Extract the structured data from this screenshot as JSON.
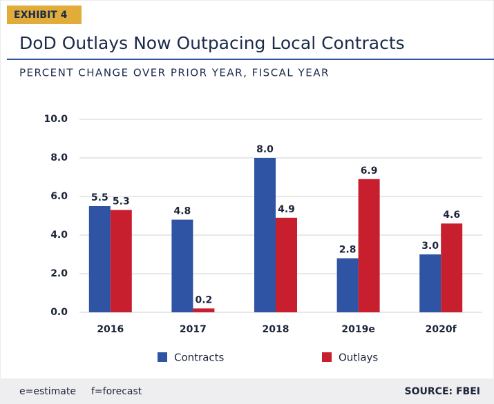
{
  "chart_data": {
    "type": "bar",
    "exhibit": "EXHIBIT 4",
    "title": "DoD Outlays Now Outpacing Local Contracts",
    "subtitle": "PERCENT CHANGE OVER PRIOR YEAR, FISCAL YEAR",
    "categories": [
      "2016",
      "2017",
      "2018",
      "2019e",
      "2020f"
    ],
    "series": [
      {
        "name": "Contracts",
        "color": "#2e54a3",
        "values": [
          5.5,
          4.8,
          8.0,
          2.8,
          3.0
        ],
        "value_labels": [
          "5.5",
          "4.8",
          "8.0",
          "2.8",
          "3.0"
        ]
      },
      {
        "name": "Outlays",
        "color": "#c81f2e",
        "values": [
          5.3,
          0.2,
          4.9,
          6.9,
          4.6
        ],
        "value_labels": [
          "5.3",
          "0.2",
          "4.9",
          "6.9",
          "4.6"
        ]
      }
    ],
    "ylim": [
      0,
      10
    ],
    "yticks": [
      {
        "value": 0,
        "label": "0.0"
      },
      {
        "value": 2,
        "label": "2.0"
      },
      {
        "value": 4,
        "label": "4.0"
      },
      {
        "value": 6,
        "label": "6.0"
      },
      {
        "value": 8,
        "label": "8.0"
      },
      {
        "value": 10,
        "label": "10.0"
      }
    ],
    "grid": true,
    "notes": [
      "e=estimate",
      "f=forecast"
    ],
    "source": "SOURCE: FBEI"
  }
}
